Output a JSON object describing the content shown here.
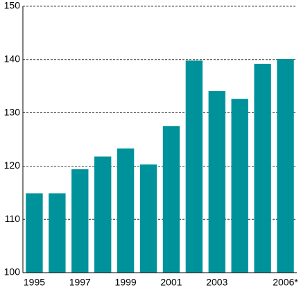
{
  "chart_data": {
    "type": "bar",
    "categories": [
      "1995",
      null,
      "1997",
      null,
      "1999",
      null,
      "2001",
      null,
      "2003",
      null,
      null,
      "2006*"
    ],
    "values": [
      114.9,
      114.9,
      119.4,
      121.8,
      123.3,
      120.3,
      127.5,
      139.8,
      134.1,
      132.6,
      139.2,
      140.1
    ],
    "color": "#00929a",
    "ylim": [
      100,
      150
    ],
    "yticks": [
      100,
      110,
      120,
      130,
      140,
      150
    ],
    "grid": true
  }
}
